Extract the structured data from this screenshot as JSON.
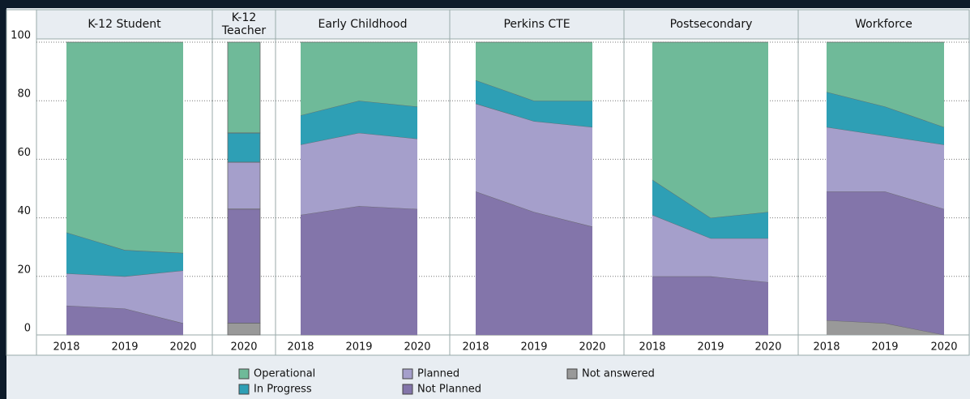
{
  "chart_data": [
    {
      "type": "area",
      "title": "K-12 Student",
      "categories": [
        "2018",
        "2019",
        "2020"
      ],
      "ylim": [
        0,
        100
      ],
      "yticks": [
        0,
        20,
        40,
        60,
        80,
        100
      ],
      "grid": true,
      "series": [
        {
          "name": "Not answered",
          "color": "#999999",
          "values": [
            0,
            0,
            0
          ]
        },
        {
          "name": "Not Planned",
          "color": "#8375aa",
          "values": [
            10,
            9,
            4
          ]
        },
        {
          "name": "Planned",
          "color": "#a59fcb",
          "values": [
            11,
            11,
            18
          ]
        },
        {
          "name": "In Progress",
          "color": "#2e9fb5",
          "values": [
            14,
            9,
            6
          ]
        },
        {
          "name": "Operational",
          "color": "#6fba99",
          "values": [
            65,
            71,
            72
          ]
        }
      ]
    },
    {
      "type": "area",
      "title": "K-12 Teacher",
      "categories": [
        "2020"
      ],
      "ylim": [
        0,
        100
      ],
      "yticks": [
        0,
        20,
        40,
        60,
        80,
        100
      ],
      "grid": true,
      "series": [
        {
          "name": "Not answered",
          "color": "#999999",
          "values": [
            4
          ]
        },
        {
          "name": "Not Planned",
          "color": "#8375aa",
          "values": [
            39
          ]
        },
        {
          "name": "Planned",
          "color": "#a59fcb",
          "values": [
            16
          ]
        },
        {
          "name": "In Progress",
          "color": "#2e9fb5",
          "values": [
            10
          ]
        },
        {
          "name": "Operational",
          "color": "#6fba99",
          "values": [
            31
          ]
        }
      ]
    },
    {
      "type": "area",
      "title": "Early Childhood",
      "categories": [
        "2018",
        "2019",
        "2020"
      ],
      "ylim": [
        0,
        100
      ],
      "yticks": [
        0,
        20,
        40,
        60,
        80,
        100
      ],
      "grid": true,
      "series": [
        {
          "name": "Not answered",
          "color": "#999999",
          "values": [
            0,
            0,
            0
          ]
        },
        {
          "name": "Not Planned",
          "color": "#8375aa",
          "values": [
            41,
            44,
            43
          ]
        },
        {
          "name": "Planned",
          "color": "#a59fcb",
          "values": [
            24,
            25,
            24
          ]
        },
        {
          "name": "In Progress",
          "color": "#2e9fb5",
          "values": [
            10,
            11,
            11
          ]
        },
        {
          "name": "Operational",
          "color": "#6fba99",
          "values": [
            25,
            20,
            22
          ]
        }
      ]
    },
    {
      "type": "area",
      "title": "Perkins CTE",
      "categories": [
        "2018",
        "2019",
        "2020"
      ],
      "ylim": [
        0,
        100
      ],
      "yticks": [
        0,
        20,
        40,
        60,
        80,
        100
      ],
      "grid": true,
      "series": [
        {
          "name": "Not answered",
          "color": "#999999",
          "values": [
            0,
            0,
            0
          ]
        },
        {
          "name": "Not Planned",
          "color": "#8375aa",
          "values": [
            49,
            42,
            37
          ]
        },
        {
          "name": "Planned",
          "color": "#a59fcb",
          "values": [
            30,
            31,
            34
          ]
        },
        {
          "name": "In Progress",
          "color": "#2e9fb5",
          "values": [
            8,
            7,
            9
          ]
        },
        {
          "name": "Operational",
          "color": "#6fba99",
          "values": [
            13,
            20,
            20
          ]
        }
      ]
    },
    {
      "type": "area",
      "title": "Postsecondary",
      "categories": [
        "2018",
        "2019",
        "2020"
      ],
      "ylim": [
        0,
        100
      ],
      "yticks": [
        0,
        20,
        40,
        60,
        80,
        100
      ],
      "grid": true,
      "series": [
        {
          "name": "Not answered",
          "color": "#999999",
          "values": [
            0,
            0,
            0
          ]
        },
        {
          "name": "Not Planned",
          "color": "#8375aa",
          "values": [
            20,
            20,
            18
          ]
        },
        {
          "name": "Planned",
          "color": "#a59fcb",
          "values": [
            21,
            13,
            15
          ]
        },
        {
          "name": "In Progress",
          "color": "#2e9fb5",
          "values": [
            12,
            7,
            9
          ]
        },
        {
          "name": "Operational",
          "color": "#6fba99",
          "values": [
            47,
            60,
            58
          ]
        }
      ]
    },
    {
      "type": "area",
      "title": "Workforce",
      "categories": [
        "2018",
        "2019",
        "2020"
      ],
      "ylim": [
        0,
        100
      ],
      "yticks": [
        0,
        20,
        40,
        60,
        80,
        100
      ],
      "grid": true,
      "series": [
        {
          "name": "Not answered",
          "color": "#999999",
          "values": [
            5,
            4,
            0
          ]
        },
        {
          "name": "Not Planned",
          "color": "#8375aa",
          "values": [
            44,
            45,
            43
          ]
        },
        {
          "name": "Planned",
          "color": "#a59fcb",
          "values": [
            22,
            19,
            22
          ]
        },
        {
          "name": "In Progress",
          "color": "#2e9fb5",
          "values": [
            12,
            10,
            6
          ]
        },
        {
          "name": "Operational",
          "color": "#6fba99",
          "values": [
            17,
            22,
            29
          ]
        }
      ]
    }
  ]
}
